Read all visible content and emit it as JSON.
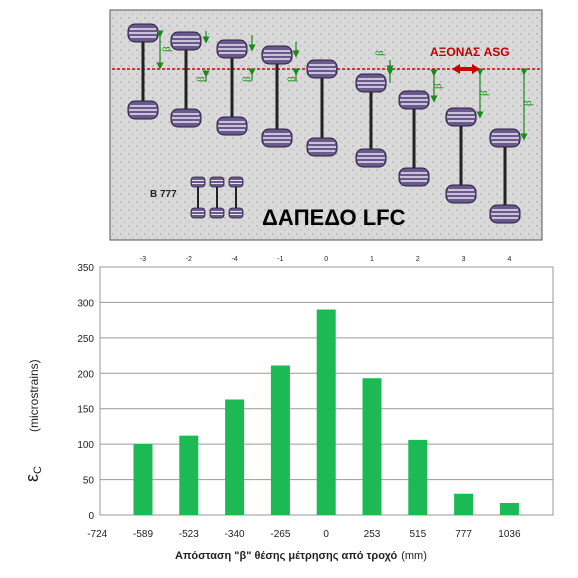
{
  "diagram": {
    "axis_label": "ΑΞΟΝΑΣ ASG",
    "beta_symbol": "β",
    "gear_label": "B 777",
    "pavement_title": "ΔΑΠΕΔΟ LFC",
    "colors": {
      "background": "#d8d8d8",
      "wheel": "#6a5a8c",
      "arrow": "#1a8a1a",
      "axis_line": "#d40000",
      "axis_arrow": "#cc0000"
    }
  },
  "chart_data": {
    "type": "bar",
    "categories": [
      "-589",
      "-523",
      "-340",
      "-265",
      "0",
      "253",
      "515",
      "777",
      "1036"
    ],
    "x_axis_first_label": "-724",
    "values": [
      100,
      112,
      163,
      211,
      290,
      193,
      106,
      30,
      17
    ],
    "top_axis_labels": [
      "-3",
      "-2",
      "-4",
      "-1",
      "0",
      "1",
      "2",
      "3",
      "4"
    ],
    "ylim": [
      0,
      350
    ],
    "yticks": [
      0,
      50,
      100,
      150,
      200,
      250,
      300,
      350
    ],
    "ylabel_symbol": "ε",
    "ylabel_subscript": "C",
    "ylabel_unit": "(microstrains)",
    "xlabel_main": "Απόσταση \"β\" θέσης μέτρησης από τροχό",
    "xlabel_unit": "(mm)",
    "grid": true,
    "bar_color": "#1db954"
  }
}
